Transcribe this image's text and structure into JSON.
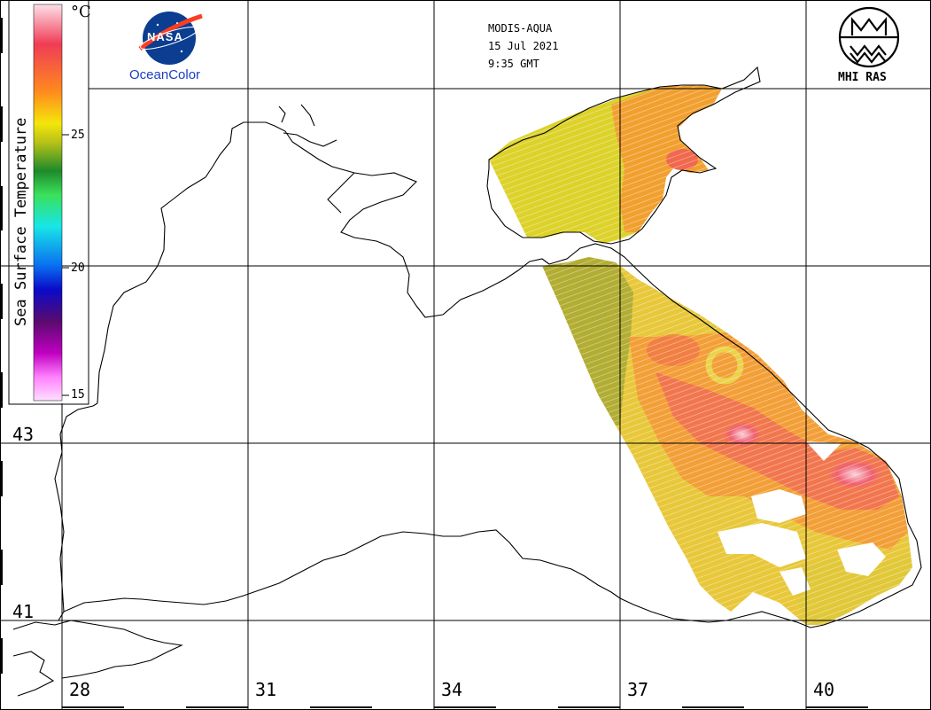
{
  "header": {
    "sensor": "MODIS-AQUA",
    "date": "15 Jul 2021",
    "time": "9:35 GMT"
  },
  "logos": {
    "left_caption": "OceanColor",
    "left_badge": "NASA",
    "right_caption": "MHI RAS"
  },
  "legend": {
    "title": "Sea Surface Temperature",
    "unit": "°C",
    "ticks": [
      "25",
      "20",
      "15"
    ],
    "colors_top_to_bottom": [
      "#fde0e8",
      "#f03c55",
      "#ff8a1e",
      "#f4e60a",
      "#b4c018",
      "#1e8a2a",
      "#3ae05a",
      "#18e6e6",
      "#0a6ef0",
      "#0a0ac8",
      "#5a0a6e",
      "#c000c0",
      "#ff80ff",
      "#ffe0ff"
    ]
  },
  "axes": {
    "latitude_labels": [
      "43",
      "41"
    ],
    "longitude_labels": [
      "28",
      "31",
      "34",
      "37",
      "40"
    ]
  },
  "colors": {
    "coastline": "#000000",
    "grid": "#000000",
    "nasa_blue": "#0b3d91",
    "nasa_red": "#fc3d21",
    "caption_blue": "#1a3fc4"
  }
}
